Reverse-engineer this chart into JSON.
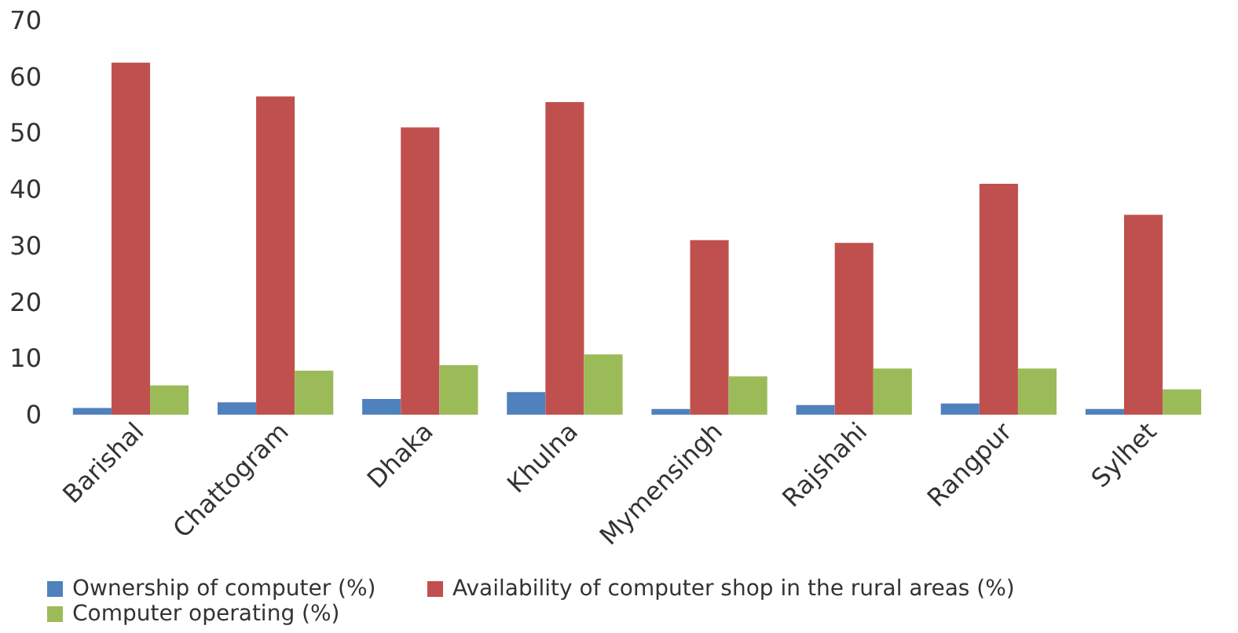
{
  "chart_data": {
    "type": "bar",
    "categories": [
      "Barishal",
      "Chattogram",
      "Dhaka",
      "Khulna",
      "Mymensingh",
      "Rajshahi",
      "Rangpur",
      "Sylhet"
    ],
    "series": [
      {
        "name": "Ownership of computer (%)",
        "color": "#4f81bd",
        "values": [
          1.2,
          2.2,
          2.8,
          4.0,
          1.0,
          1.7,
          2.0,
          1.0
        ]
      },
      {
        "name": "Availability of computer shop in the rural areas (%)",
        "color": "#c0504d",
        "values": [
          62.5,
          56.5,
          51.0,
          55.5,
          31.0,
          30.5,
          41.0,
          35.5
        ]
      },
      {
        "name": "Computer operating (%)",
        "color": "#9bbb59",
        "values": [
          5.2,
          7.8,
          8.8,
          10.7,
          6.8,
          8.2,
          8.2,
          4.5
        ]
      }
    ],
    "ylim": [
      0,
      70
    ],
    "yticks": [
      0,
      10,
      20,
      30,
      40,
      50,
      60,
      70
    ],
    "grid": false,
    "legend": "bottom"
  }
}
